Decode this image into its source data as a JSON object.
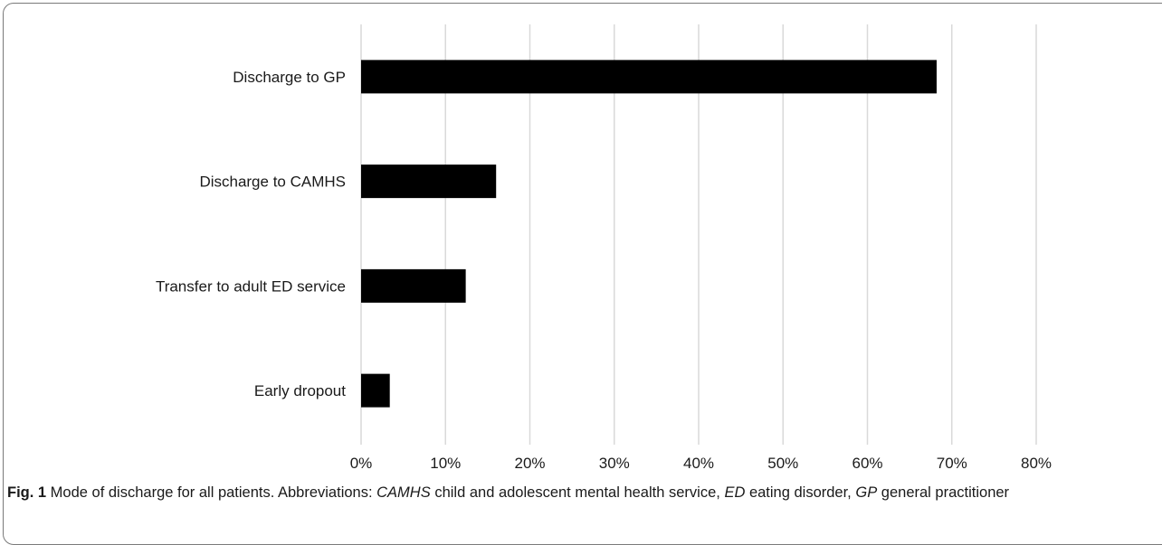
{
  "chart_data": {
    "type": "bar",
    "orientation": "horizontal",
    "categories": [
      "Discharge to GP",
      "Discharge to CAMHS",
      "Transfer to adult ED service",
      "Early dropout"
    ],
    "values": [
      68.2,
      16.0,
      12.4,
      3.4
    ],
    "value_unit": "%",
    "xlim": [
      0,
      80
    ],
    "xticks": [
      "0%",
      "10%",
      "20%",
      "30%",
      "40%",
      "50%",
      "60%",
      "70%",
      "80%"
    ],
    "xtick_values": [
      0,
      10,
      20,
      30,
      40,
      50,
      60,
      70,
      80
    ],
    "grid": true,
    "legend": "none",
    "bar_color": "#000000",
    "grid_color": "#d9d9d9"
  },
  "caption": {
    "fig_label": "Fig. 1",
    "text1": "  Mode of discharge for all patients. Abbreviations: ",
    "abbr1": "CAMHS",
    "text2": " child and adolescent mental health service, ",
    "abbr2": "ED",
    "text3": " eating disorder, ",
    "abbr3": "GP",
    "text4": " general practitioner"
  }
}
